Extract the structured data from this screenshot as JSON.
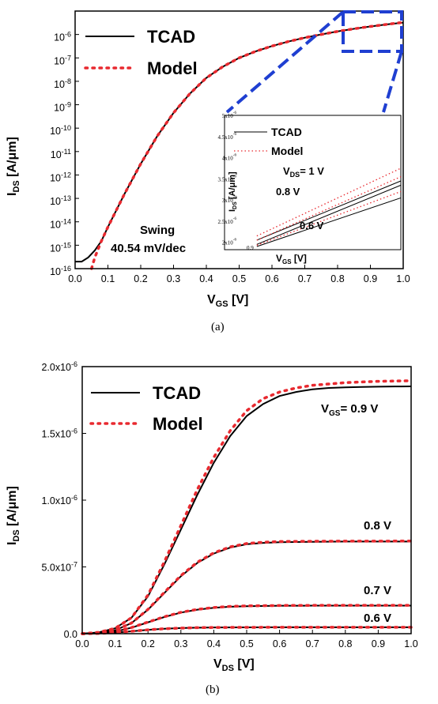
{
  "chart_data": [
    {
      "type": "line",
      "panel": "a",
      "caption": "(a)",
      "y_scale": "log",
      "xlim": [
        0.0,
        1.0
      ],
      "ylim": [
        1e-16,
        1e-05
      ],
      "x_ticks": [
        "0.0",
        "0.1",
        "0.2",
        "0.3",
        "0.4",
        "0.5",
        "0.6",
        "0.7",
        "0.8",
        "0.9",
        "1.0"
      ],
      "y_ticks": [
        "10-16",
        "10-15",
        "10-14",
        "10-13",
        "10-12",
        "10-11",
        "10-10",
        "10-9",
        "10-8",
        "10-7",
        "10-6"
      ],
      "xlabel_main": "V",
      "xlabel_sub": "GS",
      "xlabel_unit": " [V]",
      "ylabel_main": "I",
      "ylabel_sub": "DS",
      "ylabel_unit": " [A/μm]",
      "legend": {
        "tcad": "TCAD",
        "model": "Model"
      },
      "annotation_swing": "Swing",
      "annotation_value": "40.54 mV/dec",
      "series": [
        {
          "name": "TCAD",
          "style": "solid",
          "color": "#000000",
          "x": [
            0.0,
            0.02,
            0.04,
            0.06,
            0.08,
            0.1,
            0.15,
            0.2,
            0.25,
            0.3,
            0.35,
            0.4,
            0.45,
            0.5,
            0.55,
            0.6,
            0.65,
            0.7,
            0.75,
            0.8,
            0.85,
            0.9,
            0.95,
            1.0
          ],
          "y": [
            2e-16,
            2e-16,
            3e-16,
            6e-16,
            1.5e-15,
            6e-15,
            1.5e-13,
            3e-12,
            4.5e-11,
            4.5e-10,
            3e-09,
            1.4e-08,
            4.2e-08,
            1e-07,
            1.9e-07,
            3.2e-07,
            5e-07,
            7.3e-07,
            1e-06,
            1.35e-06,
            1.75e-06,
            2.2e-06,
            2.7e-06,
            3.2e-06
          ]
        },
        {
          "name": "Model",
          "style": "dotted",
          "color": "#e8292f",
          "x": [
            0.05,
            0.06,
            0.08,
            0.1,
            0.15,
            0.2,
            0.25,
            0.3,
            0.35,
            0.4,
            0.45,
            0.5,
            0.55,
            0.6,
            0.65,
            0.7,
            0.75,
            0.8,
            0.85,
            0.9,
            0.95,
            1.0
          ],
          "y": [
            1e-16,
            3e-16,
            1.5e-15,
            6e-15,
            1.5e-13,
            3e-12,
            4.5e-11,
            4.5e-10,
            3e-09,
            1.4e-08,
            4.2e-08,
            1e-07,
            1.9e-07,
            3.2e-07,
            5e-07,
            7.3e-07,
            1e-06,
            1.35e-06,
            1.75e-06,
            2.2e-06,
            2.7e-06,
            3.3e-06
          ]
        }
      ],
      "inset": {
        "legend": {
          "tcad": "TCAD",
          "model": "Model"
        },
        "xlabel_main": "V",
        "xlabel_sub": "GS",
        "xlabel_unit": " [V]",
        "ylabel_main": "I",
        "ylabel_sub": "DS",
        "ylabel_unit": " [A/μm]",
        "x_tick": "0.9",
        "y_ticks": [
          "5x10-6",
          "4.5x10-6",
          "4x10-6",
          "3.5x10-6",
          "3x10-6",
          "2.5x10-6",
          "2x10-6"
        ],
        "labels": {
          "vds1": "V",
          "vds1_sub": "DS",
          "vds1_val": "= 1 V",
          "vds08": "0.8 V",
          "vds06": "0.6 V"
        },
        "highlight_color": "#1f3fd1"
      }
    },
    {
      "type": "line",
      "panel": "b",
      "caption": "(b)",
      "xlim": [
        0.0,
        1.0
      ],
      "ylim": [
        0.0,
        2e-06
      ],
      "x_ticks": [
        "0.0",
        "0.1",
        "0.2",
        "0.3",
        "0.4",
        "0.5",
        "0.6",
        "0.7",
        "0.8",
        "0.9",
        "1.0"
      ],
      "y_ticks": [
        "0.0",
        "5.0x10-7",
        "1.0x10-6",
        "1.5x10-6",
        "2.0x10-6"
      ],
      "xlabel_main": "V",
      "xlabel_sub": "DS",
      "xlabel_unit": " [V]",
      "ylabel_main": "I",
      "ylabel_sub": "DS",
      "ylabel_unit": " [A/μm]",
      "legend": {
        "tcad": "TCAD",
        "model": "Model"
      },
      "curve_labels": {
        "vgs": "V",
        "vgs_sub": "GS",
        "vgs_val": "= 0.9 V",
        "l08": "0.8 V",
        "l07": "0.7 V",
        "l06": "0.6 V"
      },
      "series": [
        {
          "name": "TCAD 0.9 V",
          "style": "solid",
          "color": "#000000",
          "x": [
            0.0,
            0.05,
            0.1,
            0.15,
            0.2,
            0.25,
            0.3,
            0.35,
            0.4,
            0.45,
            0.5,
            0.55,
            0.6,
            0.65,
            0.7,
            0.75,
            0.8,
            0.85,
            0.9,
            0.95,
            1.0
          ],
          "y": [
            0,
            1e-08,
            4e-08,
            1.2e-07,
            2.8e-07,
            5.2e-07,
            7.8e-07,
            1.04e-06,
            1.28e-06,
            1.48e-06,
            1.63e-06,
            1.72e-06,
            1.78e-06,
            1.81e-06,
            1.83e-06,
            1.84e-06,
            1.845e-06,
            1.848e-06,
            1.85e-06,
            1.851e-06,
            1.852e-06
          ]
        },
        {
          "name": "Model 0.9 V",
          "style": "dotted",
          "color": "#e8292f",
          "x": [
            0.0,
            0.05,
            0.1,
            0.15,
            0.2,
            0.25,
            0.3,
            0.35,
            0.4,
            0.45,
            0.5,
            0.55,
            0.6,
            0.65,
            0.7,
            0.75,
            0.8,
            0.85,
            0.9,
            0.95,
            1.0
          ],
          "y": [
            0,
            1e-08,
            4e-08,
            1.2e-07,
            2.9e-07,
            5.4e-07,
            8.1e-07,
            1.08e-06,
            1.32e-06,
            1.52e-06,
            1.67e-06,
            1.76e-06,
            1.81e-06,
            1.84e-06,
            1.86e-06,
            1.87e-06,
            1.88e-06,
            1.885e-06,
            1.89e-06,
            1.892e-06,
            1.894e-06
          ]
        },
        {
          "name": "TCAD 0.8 V",
          "style": "solid",
          "color": "#000000",
          "x": [
            0.0,
            0.05,
            0.1,
            0.15,
            0.2,
            0.25,
            0.3,
            0.35,
            0.4,
            0.45,
            0.5,
            0.55,
            0.6,
            0.7,
            0.8,
            0.9,
            1.0
          ],
          "y": [
            0,
            5e-09,
            2.5e-08,
            8e-08,
            1.8e-07,
            3.05e-07,
            4.3e-07,
            5.3e-07,
            6e-07,
            6.45e-07,
            6.7e-07,
            6.8e-07,
            6.85e-07,
            6.88e-07,
            6.9e-07,
            6.9e-07,
            6.9e-07
          ]
        },
        {
          "name": "Model 0.8 V",
          "style": "dotted",
          "color": "#e8292f",
          "x": [
            0.0,
            0.05,
            0.1,
            0.15,
            0.2,
            0.25,
            0.3,
            0.35,
            0.4,
            0.45,
            0.5,
            0.55,
            0.6,
            0.7,
            0.8,
            0.9,
            1.0
          ],
          "y": [
            0,
            5e-09,
            2.5e-08,
            8e-08,
            1.82e-07,
            3.1e-07,
            4.35e-07,
            5.35e-07,
            6.05e-07,
            6.5e-07,
            6.75e-07,
            6.85e-07,
            6.9e-07,
            6.92e-07,
            6.93e-07,
            6.93e-07,
            6.94e-07
          ]
        },
        {
          "name": "TCAD 0.7 V",
          "style": "solid",
          "color": "#000000",
          "x": [
            0.0,
            0.05,
            0.1,
            0.15,
            0.2,
            0.25,
            0.3,
            0.35,
            0.4,
            0.45,
            0.5,
            0.6,
            0.7,
            0.8,
            0.9,
            1.0
          ],
          "y": [
            0,
            3e-09,
            1.5e-08,
            4.5e-08,
            8.5e-08,
            1.25e-07,
            1.58e-07,
            1.8e-07,
            1.94e-07,
            2.02e-07,
            2.06e-07,
            2.09e-07,
            2.1e-07,
            2.1e-07,
            2.1e-07,
            2.1e-07
          ]
        },
        {
          "name": "Model 0.7 V",
          "style": "dotted",
          "color": "#e8292f",
          "x": [
            0.0,
            0.05,
            0.1,
            0.15,
            0.2,
            0.25,
            0.3,
            0.35,
            0.4,
            0.45,
            0.5,
            0.6,
            0.7,
            0.8,
            0.9,
            1.0
          ],
          "y": [
            0,
            3e-09,
            1.5e-08,
            4.6e-08,
            8.7e-08,
            1.27e-07,
            1.6e-07,
            1.82e-07,
            1.96e-07,
            2.04e-07,
            2.08e-07,
            2.11e-07,
            2.12e-07,
            2.12e-07,
            2.12e-07,
            2.12e-07
          ]
        },
        {
          "name": "TCAD 0.6 V",
          "style": "solid",
          "color": "#000000",
          "x": [
            0.0,
            0.05,
            0.1,
            0.15,
            0.2,
            0.25,
            0.3,
            0.35,
            0.4,
            0.5,
            0.6,
            0.7,
            0.8,
            0.9,
            1.0
          ],
          "y": [
            0,
            2e-09,
            8e-09,
            1.8e-08,
            2.9e-08,
            3.7e-08,
            4.2e-08,
            4.5e-08,
            4.65e-08,
            4.75e-08,
            4.8e-08,
            4.8e-08,
            4.8e-08,
            4.8e-08,
            4.8e-08
          ]
        },
        {
          "name": "Model 0.6 V",
          "style": "dotted",
          "color": "#e8292f",
          "x": [
            0.0,
            0.05,
            0.1,
            0.15,
            0.2,
            0.25,
            0.3,
            0.35,
            0.4,
            0.5,
            0.6,
            0.7,
            0.8,
            0.9,
            1.0
          ],
          "y": [
            0,
            2e-09,
            8e-09,
            1.8e-08,
            2.9e-08,
            3.7e-08,
            4.2e-08,
            4.5e-08,
            4.65e-08,
            4.75e-08,
            4.8e-08,
            4.8e-08,
            4.8e-08,
            4.8e-08,
            4.8e-08
          ]
        }
      ]
    }
  ]
}
